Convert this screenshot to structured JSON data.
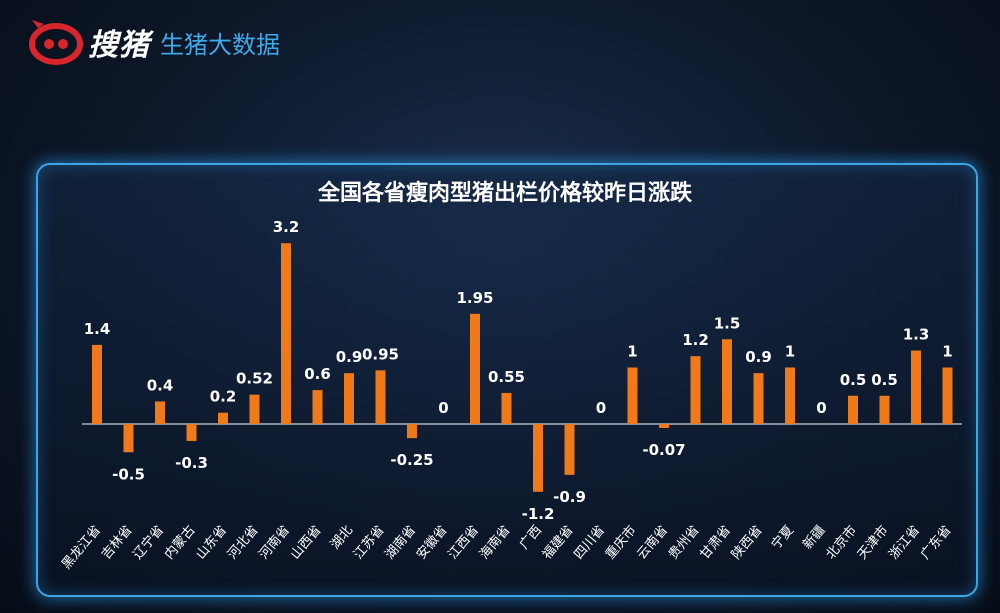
{
  "header": {
    "logo_icon": "pig-snout-logo-icon",
    "brand_name": "搜猪",
    "brand_sub": "生猪大数据",
    "accent_color": "#3fa9e8",
    "logo_color": "#d9262c"
  },
  "chart_data": {
    "type": "bar",
    "title": "全国各省瘦肉型猪出栏价格较昨日涨跌",
    "xlabel": "",
    "ylabel": "",
    "bar_color": "#f07a1a",
    "grid": false,
    "ylim": [
      -1.3,
      3.3
    ],
    "categories": [
      "黑龙江省",
      "吉林省",
      "辽宁省",
      "内蒙古",
      "山东省",
      "河北省",
      "河南省",
      "山西省",
      "湖北",
      "江苏省",
      "湖南省",
      "安徽省",
      "江西省",
      "海南省",
      "广西",
      "福建省",
      "四川省",
      "重庆市",
      "云南省",
      "贵州省",
      "甘肃省",
      "陕西省",
      "宁夏",
      "新疆",
      "北京市",
      "天津市",
      "浙江省",
      "广东省"
    ],
    "values": [
      1.4,
      -0.5,
      0.4,
      -0.3,
      0.2,
      0.52,
      3.2,
      0.6,
      0.9,
      0.95,
      -0.25,
      0,
      1.95,
      0.55,
      -1.2,
      -0.9,
      0,
      1,
      -0.07,
      1.2,
      1.5,
      0.9,
      1,
      0,
      0.5,
      0.5,
      1.3,
      1
    ],
    "value_labels": [
      "1.4",
      "-0.5",
      "0.4",
      "-0.3",
      "0.2",
      "0.52",
      "3.2",
      "0.6",
      "0.9",
      "0.95",
      "-0.25",
      "0",
      "1.95",
      "0.55",
      "-1.2",
      "-0.9",
      "0",
      "1",
      "-0.07",
      "1.2",
      "1.5",
      "0.9",
      "1",
      "0",
      "0.5",
      "0.5",
      "1.3",
      "1"
    ]
  }
}
